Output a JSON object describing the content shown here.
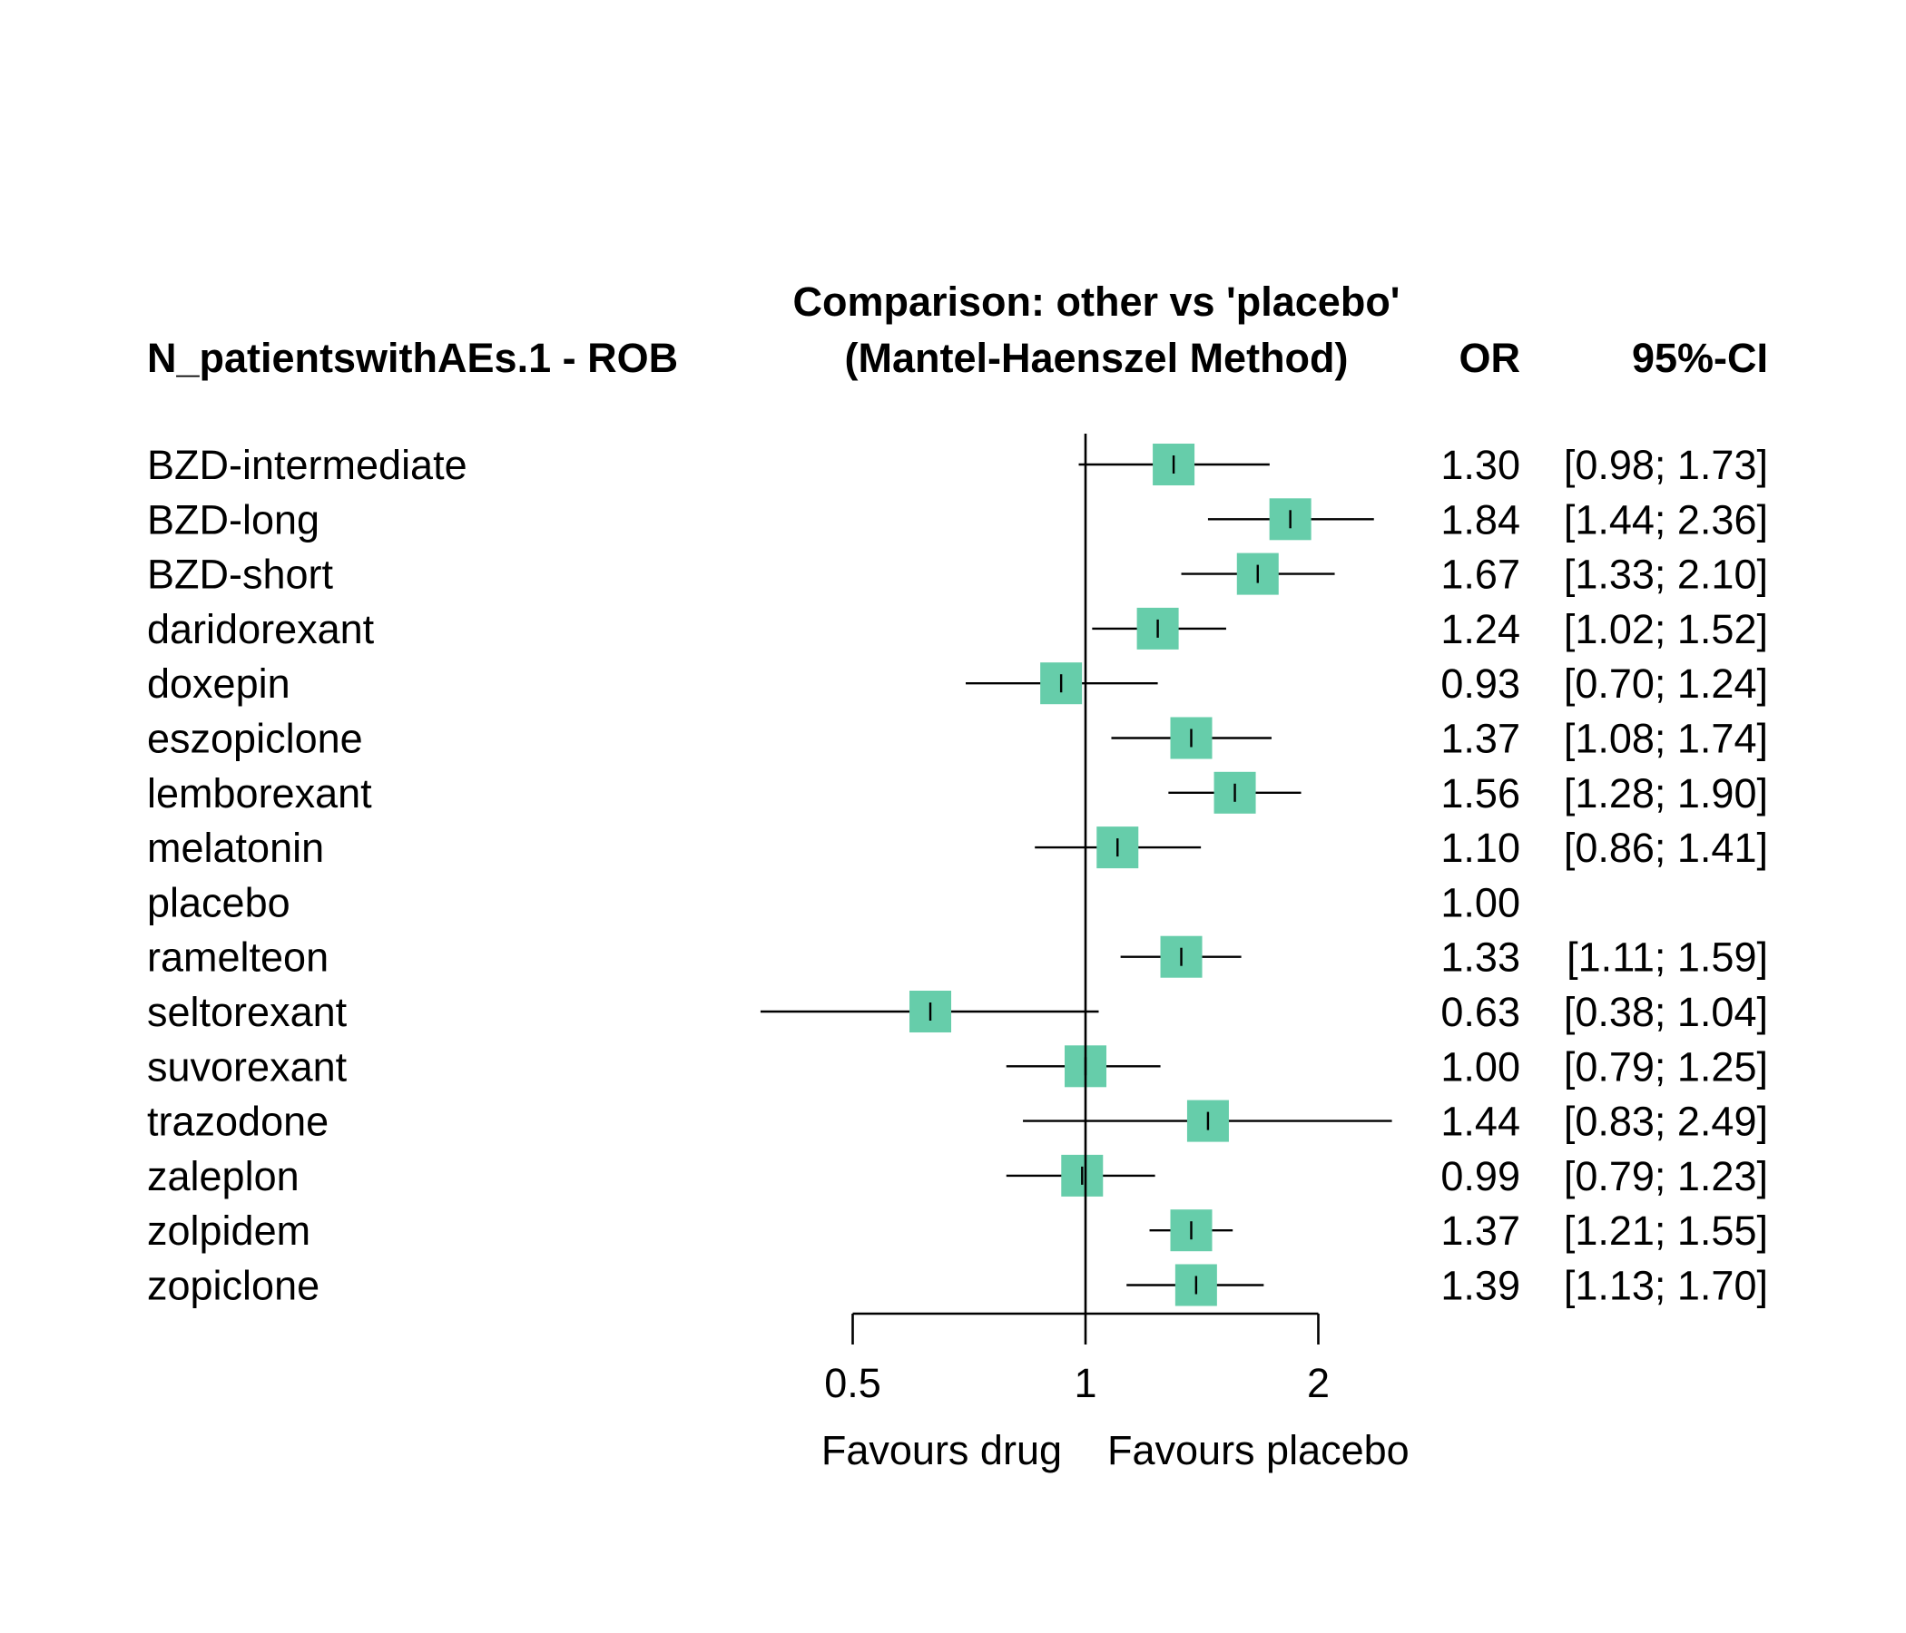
{
  "chart_data": {
    "type": "forest",
    "left_header": "N_patientswithAEs.1 - ROB",
    "title_line1": "Comparison: other vs 'placebo'",
    "title_line2": "(Mantel-Haenszel Method)",
    "col_or_header": "OR",
    "col_ci_header": "95%-CI",
    "x_scale": "log",
    "reference_value": 1,
    "x_ticks": [
      0.5,
      1,
      2
    ],
    "x_tick_labels": [
      "0.5",
      "1",
      "2"
    ],
    "favours_left": "Favours drug",
    "favours_right": "Favours placebo",
    "box_color": "#66CDAA",
    "rows": [
      {
        "label": "BZD-intermediate",
        "or": 1.3,
        "lo": 0.98,
        "hi": 1.73,
        "or_text": "1.30",
        "ci_text": "[0.98; 1.73]"
      },
      {
        "label": "BZD-long",
        "or": 1.84,
        "lo": 1.44,
        "hi": 2.36,
        "or_text": "1.84",
        "ci_text": "[1.44; 2.36]"
      },
      {
        "label": "BZD-short",
        "or": 1.67,
        "lo": 1.33,
        "hi": 2.1,
        "or_text": "1.67",
        "ci_text": "[1.33; 2.10]"
      },
      {
        "label": "daridorexant",
        "or": 1.24,
        "lo": 1.02,
        "hi": 1.52,
        "or_text": "1.24",
        "ci_text": "[1.02; 1.52]"
      },
      {
        "label": "doxepin",
        "or": 0.93,
        "lo": 0.7,
        "hi": 1.24,
        "or_text": "0.93",
        "ci_text": "[0.70; 1.24]"
      },
      {
        "label": "eszopiclone",
        "or": 1.37,
        "lo": 1.08,
        "hi": 1.74,
        "or_text": "1.37",
        "ci_text": "[1.08; 1.74]"
      },
      {
        "label": "lemborexant",
        "or": 1.56,
        "lo": 1.28,
        "hi": 1.9,
        "or_text": "1.56",
        "ci_text": "[1.28; 1.90]"
      },
      {
        "label": "melatonin",
        "or": 1.1,
        "lo": 0.86,
        "hi": 1.41,
        "or_text": "1.10",
        "ci_text": "[0.86; 1.41]"
      },
      {
        "label": "placebo",
        "or": 1.0,
        "lo": null,
        "hi": null,
        "or_text": "1.00",
        "ci_text": ""
      },
      {
        "label": "ramelteon",
        "or": 1.33,
        "lo": 1.11,
        "hi": 1.59,
        "or_text": "1.33",
        "ci_text": "[1.11; 1.59]"
      },
      {
        "label": "seltorexant",
        "or": 0.63,
        "lo": 0.38,
        "hi": 1.04,
        "or_text": "0.63",
        "ci_text": "[0.38; 1.04]"
      },
      {
        "label": "suvorexant",
        "or": 1.0,
        "lo": 0.79,
        "hi": 1.25,
        "or_text": "1.00",
        "ci_text": "[0.79; 1.25]"
      },
      {
        "label": "trazodone",
        "or": 1.44,
        "lo": 0.83,
        "hi": 2.49,
        "or_text": "1.44",
        "ci_text": "[0.83; 2.49]"
      },
      {
        "label": "zaleplon",
        "or": 0.99,
        "lo": 0.79,
        "hi": 1.23,
        "or_text": "0.99",
        "ci_text": "[0.79; 1.23]"
      },
      {
        "label": "zolpidem",
        "or": 1.37,
        "lo": 1.21,
        "hi": 1.55,
        "or_text": "1.37",
        "ci_text": "[1.21; 1.55]"
      },
      {
        "label": "zopiclone",
        "or": 1.39,
        "lo": 1.13,
        "hi": 1.7,
        "or_text": "1.39",
        "ci_text": "[1.13; 1.70]"
      }
    ]
  }
}
